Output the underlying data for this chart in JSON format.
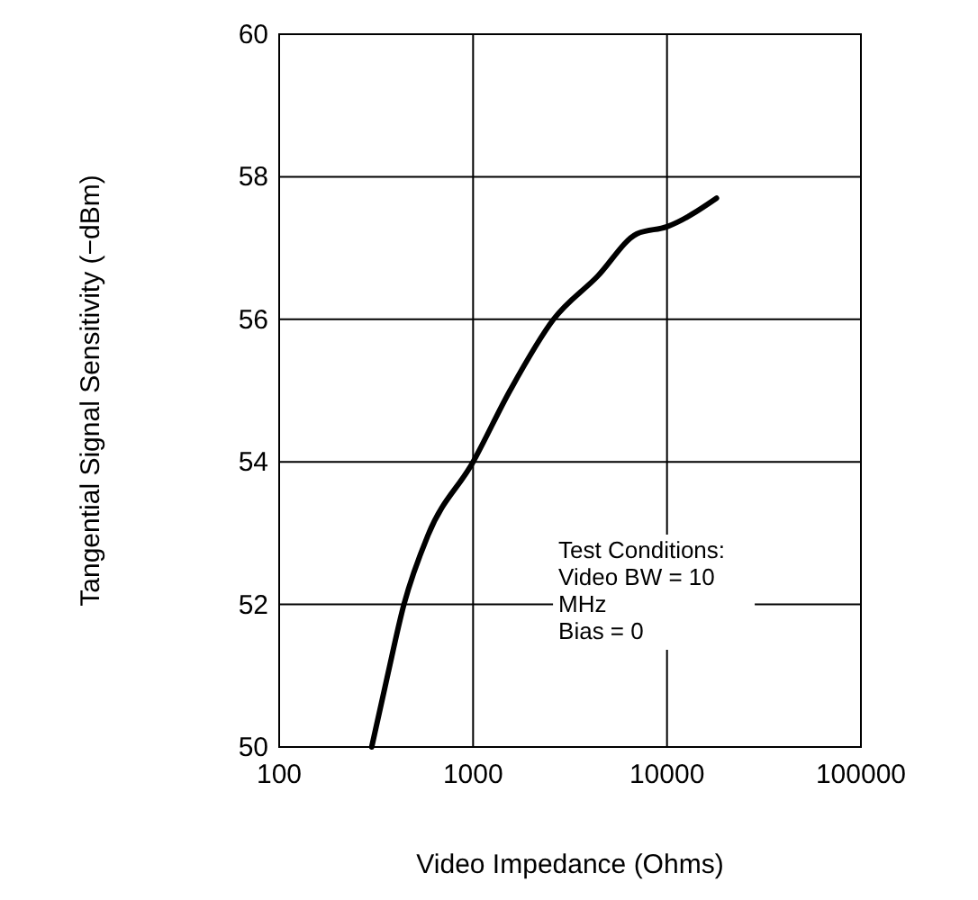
{
  "chart_data": {
    "type": "line",
    "xlabel": "Video Impedance (Ohms)",
    "ylabel": "Tangential Signal Sensitivity (−dBm)",
    "log": "x",
    "xlim": [
      100,
      100000
    ],
    "xticks": [
      100,
      1000,
      10000,
      100000
    ],
    "ylim": [
      50,
      60
    ],
    "yticks": [
      50,
      52,
      54,
      56,
      58,
      60
    ],
    "grid": true,
    "marker": "none",
    "line_style": "solid",
    "series": [
      {
        "color": "#000000",
        "x": [
          300,
          360,
          440,
          585,
          1000,
          1550,
          2600,
          4370,
          7000,
          10000,
          18000
        ],
        "values": [
          50,
          50.97,
          52,
          52.97,
          54,
          55,
          56,
          56.6,
          57.2,
          57.3,
          57.7
        ]
      }
    ],
    "annotations": [
      "Test Conditions:\nVideo BW = 10\nMHz\nBias = 0"
    ]
  }
}
